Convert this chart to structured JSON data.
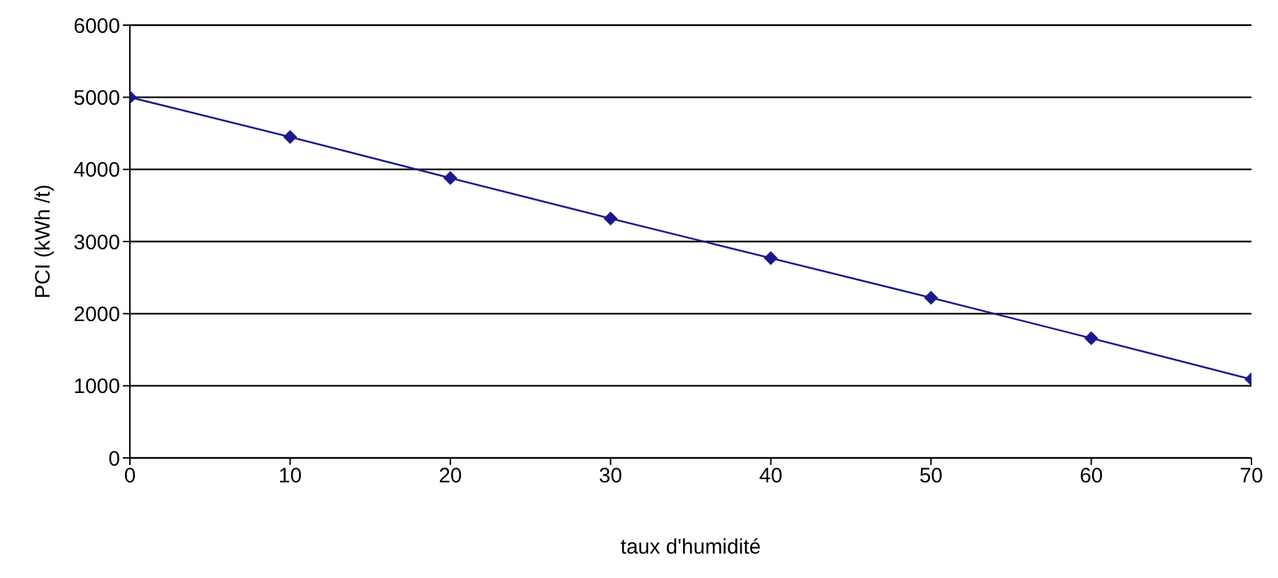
{
  "chart_data": {
    "type": "line",
    "xlabel": "taux d'humidité",
    "ylabel": "PCI (kWh /t)",
    "x": [
      0,
      10,
      20,
      30,
      40,
      50,
      60,
      70
    ],
    "series": [
      {
        "color": "#1a1a8c",
        "values": [
          5000,
          4450,
          3880,
          3320,
          2770,
          2220,
          1660,
          1090
        ]
      }
    ],
    "xlim": [
      0,
      70
    ],
    "xticks": [
      0,
      10,
      20,
      30,
      40,
      50,
      60,
      70
    ],
    "ylim": [
      0,
      6000
    ],
    "yticks": [
      0,
      1000,
      2000,
      3000,
      4000,
      5000,
      6000
    ],
    "grid": "y",
    "marker": "diamond",
    "line_style": "solid"
  }
}
